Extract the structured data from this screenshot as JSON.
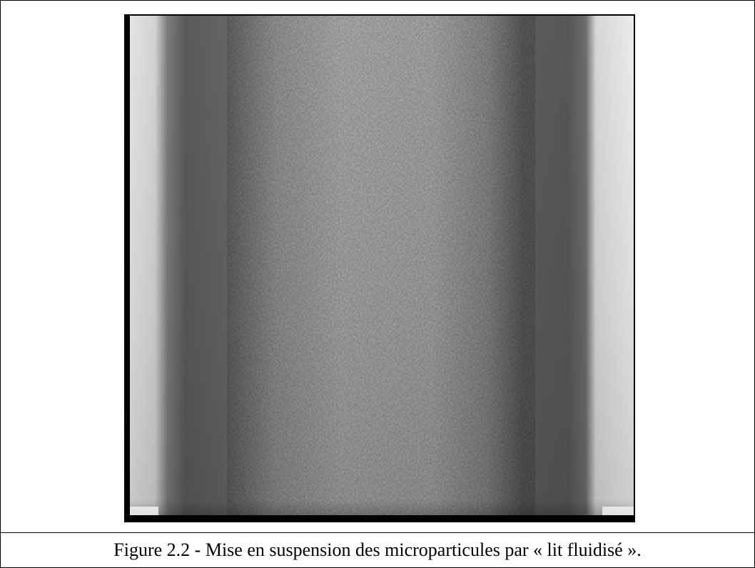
{
  "figure": {
    "caption": "Figure 2.2 - Mise en suspension des microparticules par « lit fluidisé »."
  }
}
